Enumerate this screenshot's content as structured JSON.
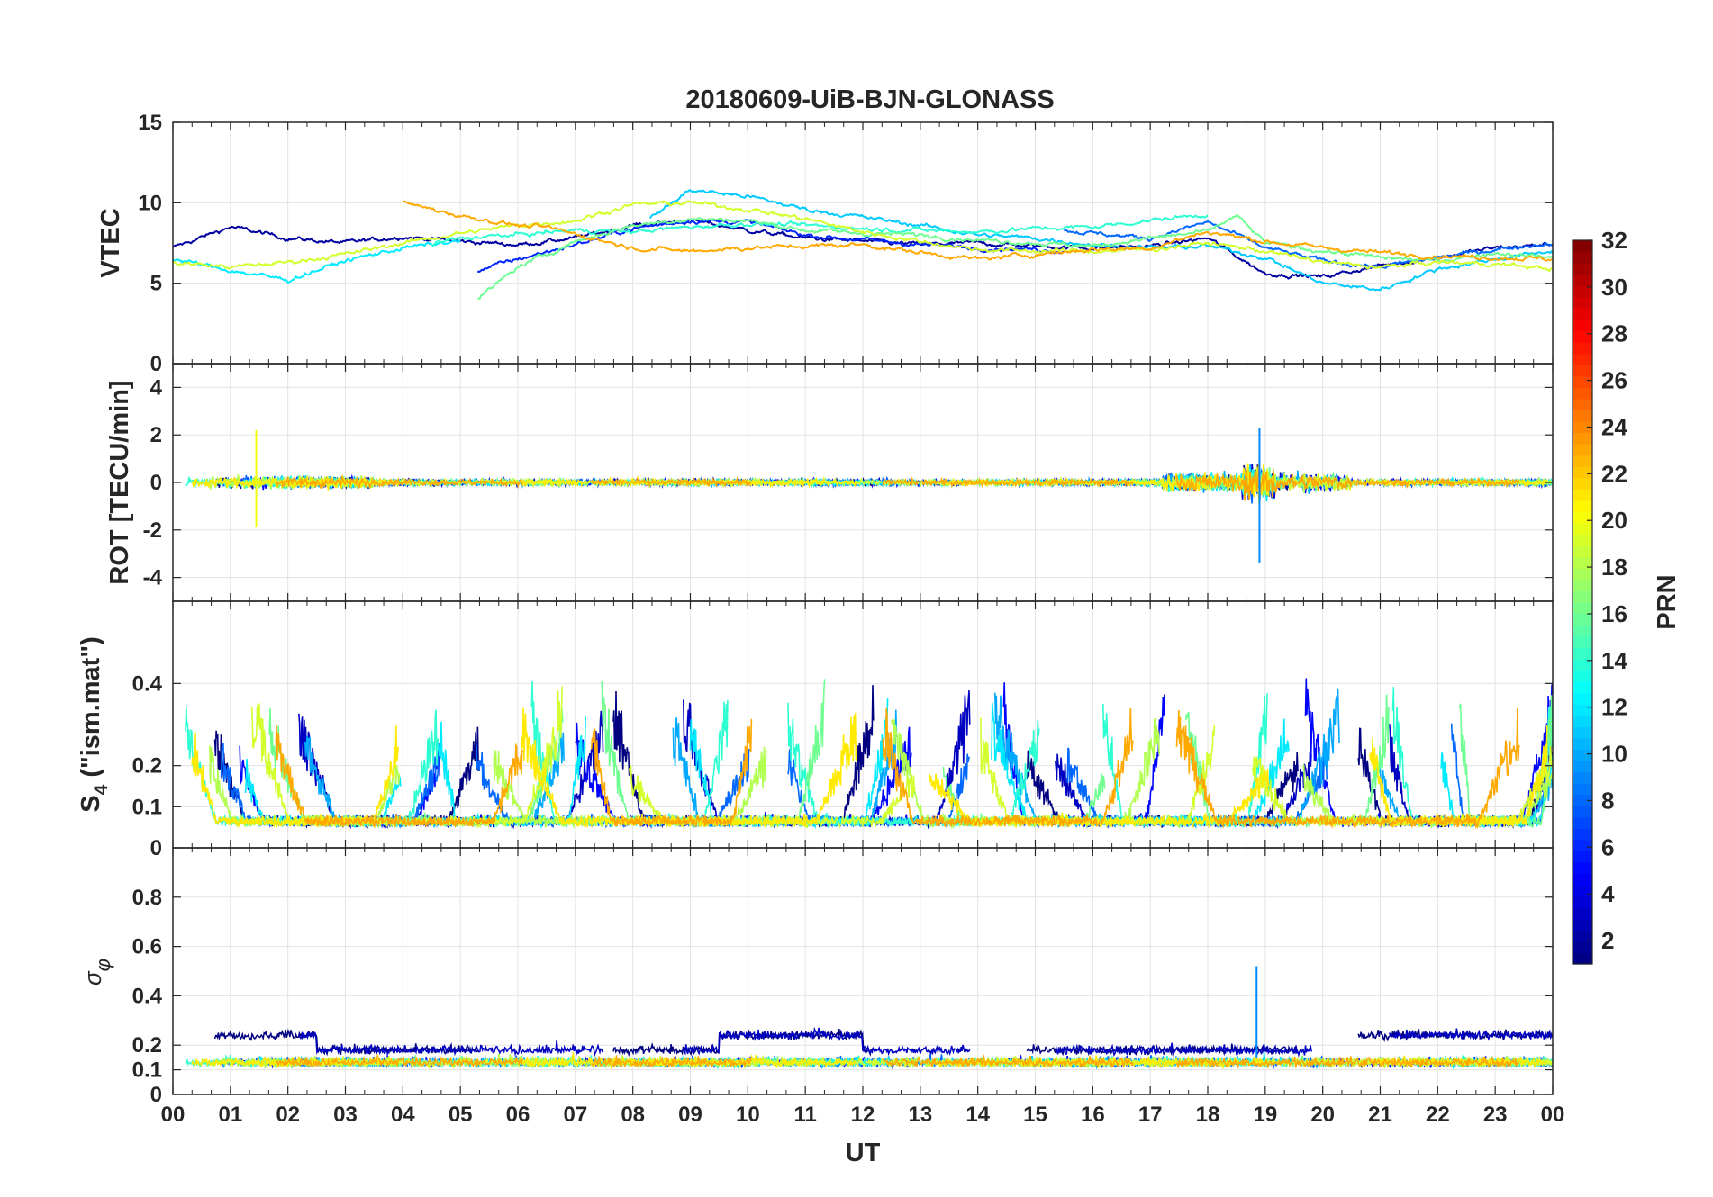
{
  "chart_data": {
    "title": "20180609-UiB-BJN-GLONASS",
    "type": "line",
    "xlabel": "UT",
    "x_ticks": [
      "00",
      "01",
      "02",
      "03",
      "04",
      "05",
      "06",
      "07",
      "08",
      "09",
      "10",
      "11",
      "12",
      "13",
      "14",
      "15",
      "16",
      "17",
      "18",
      "19",
      "20",
      "21",
      "22",
      "23",
      "00"
    ],
    "xlim_hours": [
      0,
      24
    ],
    "grid": true,
    "colorbar": {
      "label": "PRN",
      "range": [
        1,
        32
      ],
      "ticks": [
        "2",
        "4",
        "6",
        "8",
        "10",
        "12",
        "14",
        "16",
        "18",
        "20",
        "22",
        "24",
        "26",
        "28",
        "30",
        "32"
      ],
      "colormap": "jet",
      "placement": "right"
    },
    "panels": [
      {
        "id": "vtec",
        "ylabel": "VTEC",
        "ylim": [
          0,
          15
        ],
        "y_ticks": [
          0,
          5,
          10,
          15
        ],
        "y_tick_labels": [
          "0",
          "5",
          "10",
          "15"
        ],
        "typical_range": [
          5,
          10
        ],
        "series": [
          {
            "prn": 2,
            "x": [
              0,
              1,
              2,
              3,
              4,
              5,
              6,
              7,
              8,
              9,
              10,
              11,
              12,
              13,
              14,
              15,
              16,
              17,
              18,
              19,
              20,
              21,
              22,
              23,
              24
            ],
            "y": [
              7.2,
              8.5,
              7.8,
              7.5,
              7.9,
              7.6,
              7.4,
              7.8,
              8.6,
              8.9,
              8.3,
              7.8,
              7.6,
              7.4,
              7.5,
              7.3,
              7.2,
              7.3,
              7.8,
              5.6,
              5.4,
              6.1,
              6.6,
              7.2,
              7.4
            ]
          },
          {
            "prn": 6,
            "x": [
              5.3,
              6,
              7,
              8,
              9,
              10,
              11,
              12,
              13,
              14,
              15,
              15.5
            ],
            "y": [
              5.8,
              6.5,
              7.4,
              8.4,
              8.9,
              8.8,
              8.0,
              7.7,
              7.4,
              7.2,
              7.1,
              7.0
            ]
          },
          {
            "prn": 8,
            "x": [
              15.5,
              16,
              17,
              18,
              18.5,
              19,
              20,
              21,
              22,
              23,
              24
            ],
            "y": [
              8.3,
              8.1,
              7.8,
              8.8,
              8.0,
              7.2,
              6.4,
              6.0,
              6.6,
              7.1,
              7.5
            ]
          },
          {
            "prn": 11,
            "x": [
              8.3,
              9,
              10,
              11,
              12,
              13,
              14,
              15,
              16,
              17,
              18,
              19,
              20,
              21,
              22,
              23,
              24
            ],
            "y": [
              9.0,
              10.8,
              10.4,
              9.6,
              9.1,
              8.6,
              8.0,
              7.8,
              7.4,
              7.2,
              7.3,
              6.6,
              5.0,
              4.6,
              5.9,
              6.5,
              7.0
            ]
          },
          {
            "prn": 12,
            "x": [
              0,
              1,
              2,
              3,
              4,
              5
            ],
            "y": [
              6.5,
              5.8,
              5.2,
              6.4,
              7.2,
              7.6
            ]
          },
          {
            "prn": 14,
            "x": [
              4.5,
              5,
              6,
              7,
              8,
              9,
              10,
              11,
              12,
              13,
              14,
              15,
              16,
              17,
              18
            ],
            "y": [
              7.4,
              7.8,
              8.0,
              8.3,
              8.2,
              8.5,
              8.7,
              8.6,
              8.4,
              8.3,
              8.2,
              8.4,
              8.5,
              8.9,
              9.3
            ]
          },
          {
            "prn": 16,
            "x": [
              5.3,
              6,
              7,
              7.4,
              8,
              9,
              10,
              11,
              12,
              13,
              14,
              15,
              16,
              17,
              18,
              18.5,
              19,
              20,
              21,
              22,
              23,
              24
            ],
            "y": [
              4.0,
              6.0,
              7.6,
              8.0,
              8.6,
              9.0,
              8.9,
              8.3,
              8.1,
              8.0,
              7.7,
              7.5,
              7.3,
              7.8,
              8.2,
              9.2,
              7.5,
              7.0,
              6.6,
              6.4,
              6.9,
              6.6
            ]
          },
          {
            "prn": 19,
            "x": [
              0,
              1,
              2,
              3,
              4,
              5,
              6,
              7,
              8,
              9,
              10,
              11,
              12,
              13,
              14,
              15,
              16,
              17,
              18,
              19,
              20,
              21,
              22,
              23,
              24
            ],
            "y": [
              6.3,
              6.0,
              6.3,
              6.8,
              7.5,
              8.1,
              8.6,
              8.9,
              9.9,
              10.0,
              9.6,
              9.0,
              8.2,
              7.6,
              7.1,
              7.0,
              7.0,
              7.1,
              7.5,
              7.0,
              6.3,
              6.0,
              6.3,
              6.2,
              5.9
            ]
          },
          {
            "prn": 23,
            "x": [
              4,
              5,
              6,
              6.6,
              8,
              9,
              10,
              11,
              12,
              13,
              14,
              15,
              16,
              17,
              18,
              19,
              20,
              21,
              22,
              23,
              24
            ],
            "y": [
              10.0,
              9.2,
              8.6,
              8.4,
              7.2,
              7.0,
              7.2,
              7.3,
              7.4,
              6.9,
              6.5,
              6.8,
              7.1,
              7.2,
              8.2,
              7.6,
              7.2,
              6.9,
              6.7,
              6.6,
              6.5
            ]
          }
        ]
      },
      {
        "id": "rot",
        "ylabel": "ROT [TECU/min]",
        "ylim": [
          -5,
          5
        ],
        "y_ticks": [
          -4,
          -2,
          0,
          2,
          4
        ],
        "y_tick_labels": [
          "-4",
          "-2",
          "0",
          "2",
          "4"
        ],
        "typical_range": [
          -0.5,
          0.5
        ],
        "notable_spikes": [
          {
            "x": 1.45,
            "y": 2.2,
            "prn": 20
          },
          {
            "x": 1.45,
            "y": -1.9,
            "prn": 20
          },
          {
            "x": 18.9,
            "y": 2.3,
            "prn": 9
          },
          {
            "x": 18.9,
            "y": -3.4,
            "prn": 9
          }
        ]
      },
      {
        "id": "s4",
        "ylabel": "S",
        "ylabel_sub": "4",
        "ylabel_suffix": " (\"ism.mat\")",
        "ylim": [
          0,
          0.6
        ],
        "y_ticks": [
          0,
          0.1,
          0.2,
          0.4
        ],
        "y_tick_labels": [
          "0",
          "0.1",
          "0.2",
          "0.4"
        ],
        "baseline": 0.05,
        "peak_max": 0.42
      },
      {
        "id": "sigma_phi",
        "ylabel": "σ",
        "ylabel_sub": "φ",
        "ylim": [
          0,
          1
        ],
        "y_ticks": [
          0,
          0.1,
          0.2,
          0.4,
          0.6,
          0.8
        ],
        "y_tick_labels": [
          "0",
          "0.1",
          "0.2",
          "0.4",
          "0.6",
          "0.8"
        ],
        "baseline": 0.12,
        "notable_spikes": [
          {
            "x": 18.85,
            "y": 0.52,
            "prn": 9
          }
        ]
      }
    ]
  }
}
